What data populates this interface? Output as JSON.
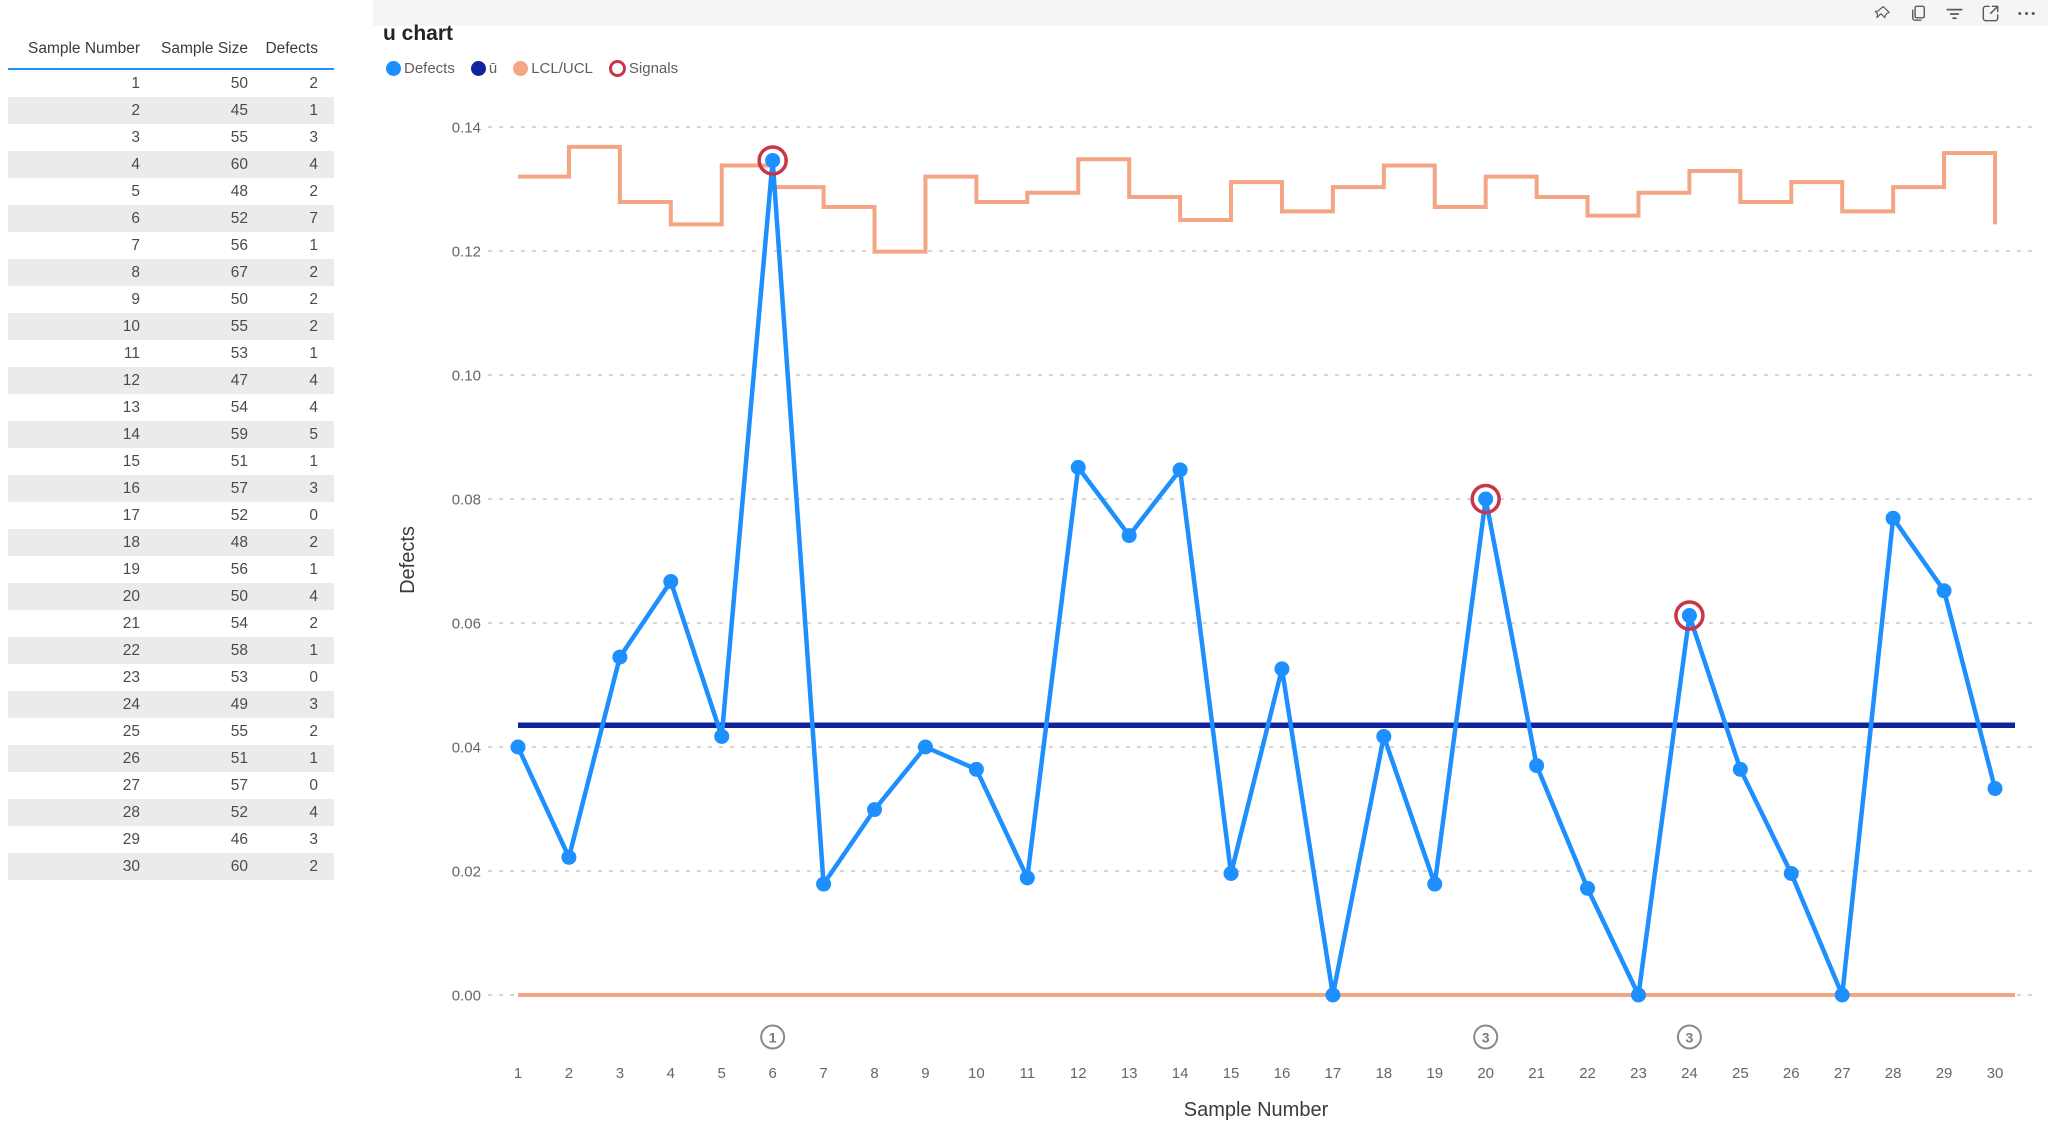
{
  "visual_header": {
    "icons": [
      "pin-icon",
      "copy-icon",
      "filter-icon",
      "focus-mode-icon",
      "more-options-icon"
    ]
  },
  "table": {
    "columns": [
      "Sample Number",
      "Sample Size",
      "Defects"
    ],
    "rows": [
      [
        1,
        50,
        2
      ],
      [
        2,
        45,
        1
      ],
      [
        3,
        55,
        3
      ],
      [
        4,
        60,
        4
      ],
      [
        5,
        48,
        2
      ],
      [
        6,
        52,
        7
      ],
      [
        7,
        56,
        1
      ],
      [
        8,
        67,
        2
      ],
      [
        9,
        50,
        2
      ],
      [
        10,
        55,
        2
      ],
      [
        11,
        53,
        1
      ],
      [
        12,
        47,
        4
      ],
      [
        13,
        54,
        4
      ],
      [
        14,
        59,
        5
      ],
      [
        15,
        51,
        1
      ],
      [
        16,
        57,
        3
      ],
      [
        17,
        52,
        0
      ],
      [
        18,
        48,
        2
      ],
      [
        19,
        56,
        1
      ],
      [
        20,
        50,
        4
      ],
      [
        21,
        54,
        2
      ],
      [
        22,
        58,
        1
      ],
      [
        23,
        53,
        0
      ],
      [
        24,
        49,
        3
      ],
      [
        25,
        55,
        2
      ],
      [
        26,
        51,
        1
      ],
      [
        27,
        57,
        0
      ],
      [
        28,
        52,
        4
      ],
      [
        29,
        46,
        3
      ],
      [
        30,
        60,
        2
      ]
    ]
  },
  "chart": {
    "title": "u chart",
    "legend": [
      {
        "label": "Defects",
        "color": "#1E8FFF",
        "marker": "filled"
      },
      {
        "label": "ū",
        "color": "#12239E",
        "marker": "filled"
      },
      {
        "label": "LCL/UCL",
        "color": "#F4A583",
        "marker": "filled"
      },
      {
        "label": "Signals",
        "color": "#C9364A",
        "marker": "ring"
      }
    ],
    "colors": {
      "defects": "#1E8FFF",
      "center_line": "#12239E",
      "limits": "#F4A583",
      "signal": "#C9364A",
      "grid": "#c9c9c9",
      "annotation": "#8a8a8a"
    },
    "y_axis": {
      "title": "Defects",
      "ticks": [
        "0.00",
        "0.02",
        "0.04",
        "0.06",
        "0.08",
        "0.10",
        "0.12",
        "0.14"
      ]
    },
    "x_axis": {
      "title": "Sample Number"
    },
    "annotations": [
      {
        "sample": 6,
        "label": "1"
      },
      {
        "sample": 20,
        "label": "3"
      },
      {
        "sample": 24,
        "label": "3"
      }
    ]
  },
  "chart_data": {
    "type": "line",
    "title": "u chart",
    "xlabel": "Sample Number",
    "ylabel": "Defects",
    "ylim": [
      0,
      0.14
    ],
    "grid": "horizontal-dashed",
    "legend_position": "top-left",
    "x": [
      1,
      2,
      3,
      4,
      5,
      6,
      7,
      8,
      9,
      10,
      11,
      12,
      13,
      14,
      15,
      16,
      17,
      18,
      19,
      20,
      21,
      22,
      23,
      24,
      25,
      26,
      27,
      28,
      29,
      30
    ],
    "series": [
      {
        "name": "Defects",
        "style": "line+markers",
        "values": [
          0.04,
          0.0222,
          0.0545,
          0.0667,
          0.0417,
          0.1346,
          0.0179,
          0.0299,
          0.04,
          0.0364,
          0.0189,
          0.0851,
          0.0741,
          0.0847,
          0.0196,
          0.0526,
          0,
          0.0417,
          0.0179,
          0.08,
          0.037,
          0.0172,
          0,
          0.0612,
          0.0364,
          0.0196,
          0,
          0.0769,
          0.0652,
          0.0333
        ]
      },
      {
        "name": "ū",
        "style": "horizontal-line",
        "value": 0.0435
      },
      {
        "name": "UCL",
        "style": "step",
        "values": [
          0.132,
          0.1368,
          0.1279,
          0.1243,
          0.1338,
          0.1303,
          0.1271,
          0.1199,
          0.132,
          0.1279,
          0.1294,
          0.1348,
          0.1287,
          0.125,
          0.1311,
          0.1264,
          0.1303,
          0.1338,
          0.1271,
          0.132,
          0.1287,
          0.1257,
          0.1294,
          0.1329,
          0.1279,
          0.1311,
          0.1264,
          0.1303,
          0.1358,
          0.1243
        ]
      },
      {
        "name": "LCL",
        "style": "horizontal-line",
        "value": 0
      }
    ],
    "signals": [
      6,
      20,
      24
    ]
  }
}
